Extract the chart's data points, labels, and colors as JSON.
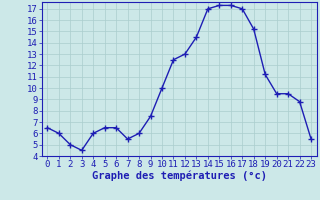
{
  "hours": [
    0,
    1,
    2,
    3,
    4,
    5,
    6,
    7,
    8,
    9,
    10,
    11,
    12,
    13,
    14,
    15,
    16,
    17,
    18,
    19,
    20,
    21,
    22,
    23
  ],
  "temps": [
    6.5,
    6.0,
    5.0,
    4.5,
    6.0,
    6.5,
    6.5,
    5.5,
    6.0,
    7.5,
    10.0,
    12.5,
    13.0,
    14.5,
    17.0,
    17.3,
    17.3,
    17.0,
    15.2,
    11.2,
    9.5,
    9.5,
    8.8,
    5.5
  ],
  "line_color": "#1e1eb4",
  "marker": "+",
  "marker_size": 4,
  "marker_lw": 1.0,
  "bg_color": "#cce8e8",
  "grid_color": "#aacece",
  "axis_label_color": "#1e1eb4",
  "tick_color": "#1e1eb4",
  "xlabel": "Graphe des températures (°c)",
  "ylim": [
    4,
    17.6
  ],
  "xlim": [
    -0.5,
    23.5
  ],
  "yticks": [
    4,
    5,
    6,
    7,
    8,
    9,
    10,
    11,
    12,
    13,
    14,
    15,
    16,
    17
  ],
  "xticks": [
    0,
    1,
    2,
    3,
    4,
    5,
    6,
    7,
    8,
    9,
    10,
    11,
    12,
    13,
    14,
    15,
    16,
    17,
    18,
    19,
    20,
    21,
    22,
    23
  ],
  "xlabel_fontsize": 7.5,
  "tick_fontsize": 6.5,
  "linewidth": 1.0,
  "spine_color": "#1e1eb4"
}
